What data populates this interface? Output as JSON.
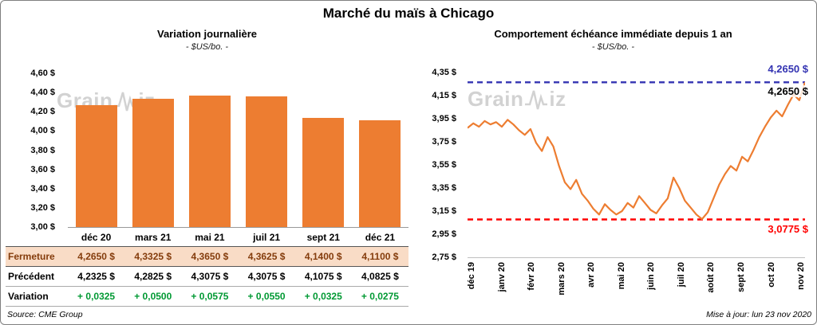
{
  "page": {
    "title": "Marché du maïs à Chicago",
    "source": "Source: CME Group",
    "updated": "Mise à jour: lun 23 nov 2020"
  },
  "watermark": {
    "prefix": "Grain",
    "suffix": "iz"
  },
  "colors": {
    "bar_orange": "#ED7D31",
    "fermeture_bg": "#F9DCC6",
    "fermeture_text": "#843C0C",
    "variation_green": "#009933",
    "high_line_blue": "#3333B2",
    "low_line_red": "#FF0000"
  },
  "left_panel": {
    "title": "Variation journalière",
    "subtitle": "- $US/bo. -"
  },
  "right_panel": {
    "title": "Comportement échéance immédiate depuis 1 an",
    "subtitle": "- $US/bo. -"
  },
  "table": {
    "rows": [
      {
        "label": "Fermeture",
        "values": [
          "4,2650 $",
          "4,3325 $",
          "4,3650 $",
          "4,3625 $",
          "4,1400 $",
          "4,1100 $"
        ]
      },
      {
        "label": "Précédent",
        "values": [
          "4,2325 $",
          "4,2825 $",
          "4,3075 $",
          "4,3075 $",
          "4,1075 $",
          "4,0825 $"
        ]
      },
      {
        "label": "Variation",
        "values": [
          "+ 0,0325",
          "+ 0,0500",
          "+ 0,0575",
          "+ 0,0550",
          "+ 0,0325",
          "+ 0,0275"
        ]
      }
    ]
  },
  "chart_data": [
    {
      "type": "bar",
      "title": "Variation journalière",
      "subtitle": "- $US/bo. -",
      "categories": [
        "déc 20",
        "mars 21",
        "mai 21",
        "juil 21",
        "sept 21",
        "déc 21"
      ],
      "values": [
        4.265,
        4.3325,
        4.365,
        4.3625,
        4.14,
        4.11
      ],
      "ylim": [
        3.0,
        4.6
      ],
      "ytick_step": 0.2,
      "ytick_labels": [
        "4,60 $",
        "4,40 $",
        "4,20 $",
        "4,00 $",
        "3,80 $",
        "3,60 $",
        "3,40 $",
        "3,20 $",
        "3,00 $"
      ],
      "bar_color": "#ED7D31",
      "grid": false,
      "legend": "none"
    },
    {
      "type": "line",
      "title": "Comportement échéance immédiate depuis 1 an",
      "subtitle": "- $US/bo. -",
      "x_labels": [
        "déc 19",
        "janv 20",
        "févr 20",
        "mars 20",
        "avr 20",
        "mai 20",
        "juin 20",
        "juil 20",
        "août 20",
        "sept 20",
        "oct 20",
        "nov 20"
      ],
      "ylim": [
        2.75,
        4.35
      ],
      "ytick_labels": [
        "4,35 $",
        "4,15 $",
        "3,95 $",
        "3,75 $",
        "3,55 $",
        "3,35 $",
        "3,15 $",
        "2,95 $",
        "2,75 $"
      ],
      "series": [
        {
          "name": "échéance immédiate",
          "color": "#ED7D31",
          "values": [
            3.87,
            3.91,
            3.88,
            3.93,
            3.9,
            3.92,
            3.88,
            3.94,
            3.9,
            3.85,
            3.81,
            3.86,
            3.74,
            3.67,
            3.79,
            3.71,
            3.54,
            3.4,
            3.34,
            3.42,
            3.3,
            3.24,
            3.17,
            3.12,
            3.21,
            3.16,
            3.12,
            3.15,
            3.22,
            3.18,
            3.28,
            3.22,
            3.16,
            3.13,
            3.2,
            3.26,
            3.44,
            3.35,
            3.24,
            3.18,
            3.12,
            3.08,
            3.14,
            3.26,
            3.38,
            3.47,
            3.54,
            3.5,
            3.62,
            3.58,
            3.68,
            3.79,
            3.88,
            3.96,
            4.02,
            3.97,
            4.07,
            4.16,
            4.11,
            4.265
          ]
        }
      ],
      "reference_lines": [
        {
          "value": 4.265,
          "label": "4,2650 $",
          "color": "#3333B2",
          "style": "dashed"
        },
        {
          "value": 3.0775,
          "label": "3,0775 $",
          "color": "#FF0000",
          "style": "dashed"
        }
      ],
      "last_price_label": "4,2650 $",
      "grid": false,
      "legend": "none"
    }
  ]
}
